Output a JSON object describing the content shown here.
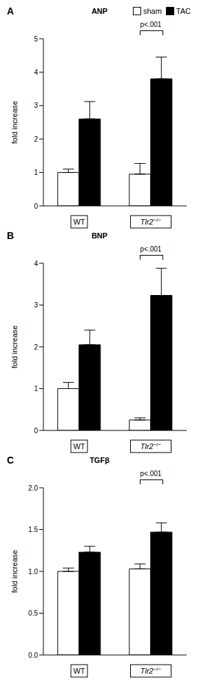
{
  "chart_data": [
    {
      "type": "bar",
      "panel": "A",
      "title": "ANP",
      "y_label": "fold increase",
      "categories": [
        "WT",
        "Tlr2−/−"
      ],
      "series": [
        {
          "name": "sham",
          "color": "#ffffff",
          "values": [
            1.0,
            0.95
          ],
          "errors": [
            0.1,
            0.32
          ]
        },
        {
          "name": "TAC",
          "color": "#000000",
          "values": [
            2.6,
            3.8
          ],
          "errors": [
            0.52,
            0.65
          ]
        }
      ],
      "ylim": [
        0,
        5
      ],
      "yticks": [
        0,
        1,
        2,
        3,
        4,
        5
      ],
      "annotations": [
        {
          "text": "p<.001",
          "category": "Tlr2−/−"
        }
      ],
      "legend": "upper right"
    },
    {
      "type": "bar",
      "panel": "B",
      "title": "BNP",
      "y_label": "fold increase",
      "categories": [
        "WT",
        "Tlr2−/−"
      ],
      "series": [
        {
          "name": "sham",
          "color": "#ffffff",
          "values": [
            1.0,
            0.25
          ],
          "errors": [
            0.15,
            0.05
          ]
        },
        {
          "name": "TAC",
          "color": "#000000",
          "values": [
            2.05,
            3.23
          ],
          "errors": [
            0.35,
            0.65
          ]
        }
      ],
      "ylim": [
        0,
        4
      ],
      "yticks": [
        0,
        1,
        2,
        3,
        4
      ],
      "annotations": [
        {
          "text": "p<.001",
          "category": "Tlr2−/−"
        }
      ]
    },
    {
      "type": "bar",
      "panel": "C",
      "title": "TGFβ",
      "y_label": "fold increase",
      "categories": [
        "WT",
        "Tlr2−/−"
      ],
      "series": [
        {
          "name": "sham",
          "color": "#ffffff",
          "values": [
            1.0,
            1.03
          ],
          "errors": [
            0.04,
            0.06
          ]
        },
        {
          "name": "TAC",
          "color": "#000000",
          "values": [
            1.23,
            1.47
          ],
          "errors": [
            0.07,
            0.11
          ]
        }
      ],
      "ylim": [
        0,
        2
      ],
      "yticks": [
        {
          "value": 0,
          "label": "0.0"
        },
        0.5,
        {
          "value": 1,
          "label": "1.0"
        },
        1.5,
        {
          "value": 2,
          "label": "2.0"
        }
      ],
      "annotations": [
        {
          "text": "p<.001",
          "category": "Tlr2−/−"
        }
      ]
    }
  ]
}
